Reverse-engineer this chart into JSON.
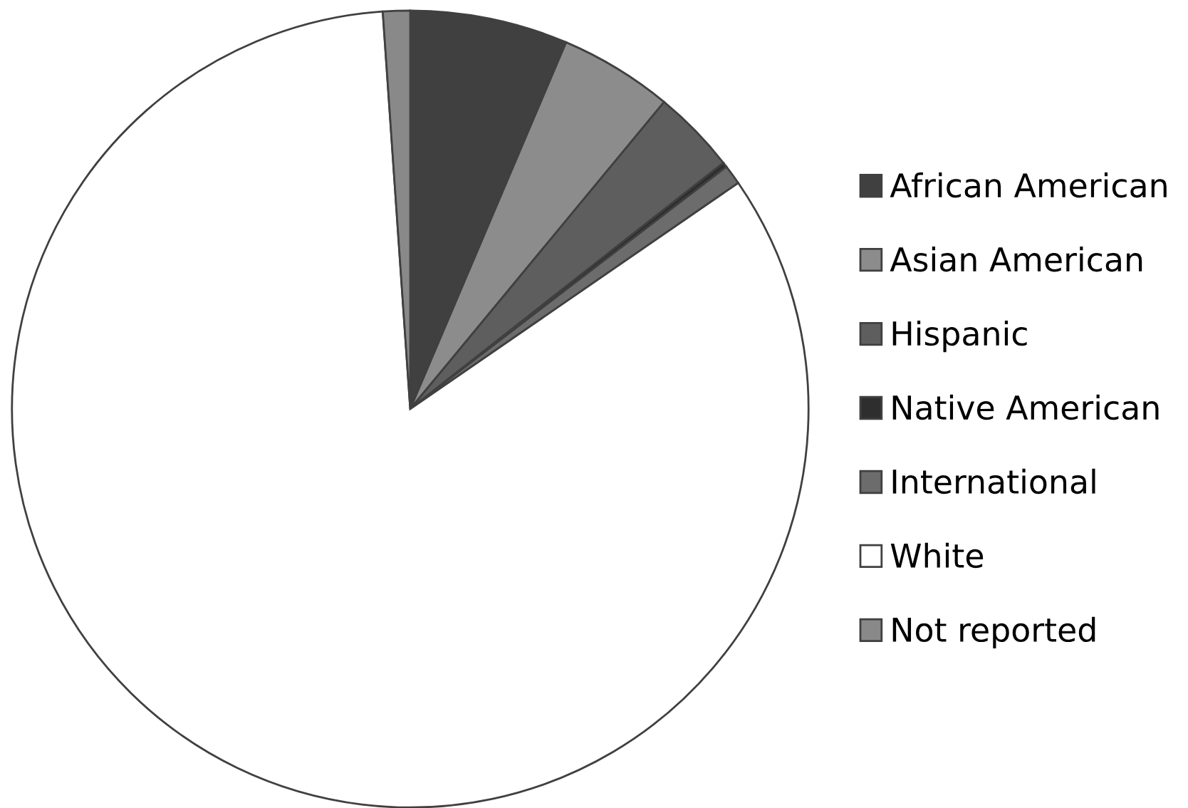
{
  "chart_data": {
    "type": "pie",
    "categories": [
      "African American",
      "Asian American",
      "Hispanic",
      "Native American",
      "International",
      "White",
      "Not reported"
    ],
    "values": [
      6.4,
      4.6,
      3.4,
      0.2,
      0.8,
      83.5,
      1.1
    ],
    "colors": [
      "#404040",
      "#8c8c8c",
      "#5e5e5e",
      "#2e2e2e",
      "#6c6c6c",
      "#ffffff",
      "#898989"
    ],
    "legend": "right"
  }
}
